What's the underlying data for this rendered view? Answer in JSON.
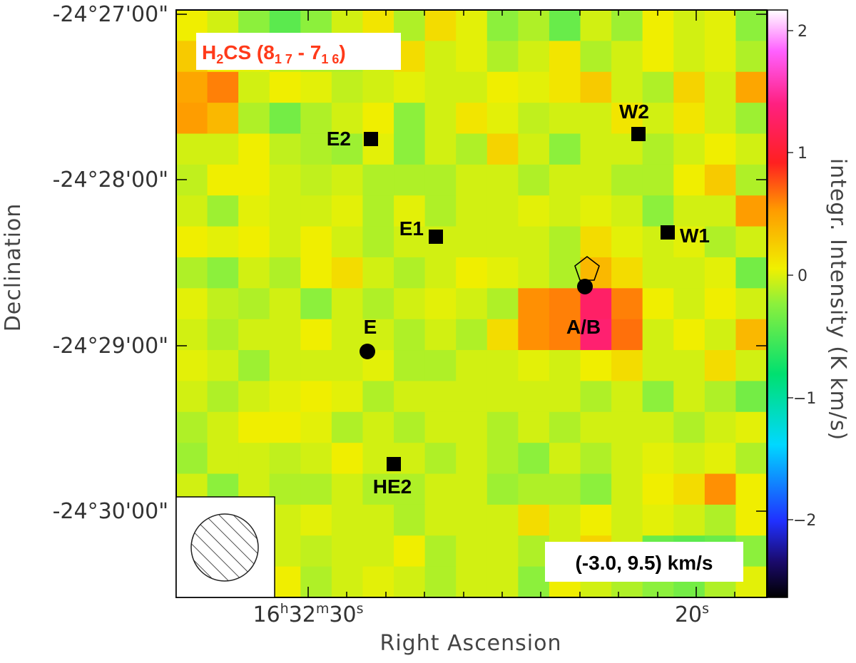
{
  "chart_data": {
    "type": "heatmap",
    "title": "H2CS (8_1 7 - 7_1 6)",
    "title_parts": {
      "base": "H",
      "sub1": "2",
      "mid": "CS (8",
      "sub2": "1 7",
      "dash": " - 7",
      "sub3": "1 6",
      "end": ")"
    },
    "velocity_range_label": "(-3.0, 9.5) km/s",
    "xlabel": "Right Ascension",
    "ylabel": "Declination",
    "x_ticks": [
      {
        "h": "16",
        "m": "32",
        "s": "30"
      },
      {
        "s": "20"
      }
    ],
    "y_ticks": [
      "-24°27'00\"",
      "-24°28'00\"",
      "-24°29'00\"",
      "-24°30'00\""
    ],
    "colorbar": {
      "label": "integr. Intensity (K km/s)",
      "ticks": [
        "2",
        "1",
        "0",
        "−1",
        "−2"
      ],
      "range": [
        -2.6,
        2.2
      ]
    },
    "grid": {
      "n_cols": 19,
      "n_rows": 19,
      "values": [
        [
          0.1,
          0.0,
          -0.2,
          -0.4,
          -0.2,
          0.0,
          0.15,
          -0.1,
          0.2,
          0.05,
          -0.2,
          -0.1,
          -0.35,
          0.0,
          -0.15,
          0.1,
          0.0,
          0.05,
          -0.2
        ],
        [
          0.3,
          0.1,
          0.05,
          -0.05,
          -0.1,
          -0.1,
          0.0,
          0.2,
          0.0,
          0.05,
          -0.1,
          0.0,
          0.15,
          -0.1,
          0.0,
          0.1,
          0.0,
          0.05,
          -0.1
        ],
        [
          0.5,
          0.65,
          0.0,
          0.1,
          0.05,
          -0.05,
          0.0,
          0.05,
          0.0,
          0.0,
          0.1,
          0.05,
          0.15,
          0.3,
          0.0,
          -0.1,
          0.25,
          0.0,
          0.5
        ],
        [
          0.55,
          0.4,
          -0.1,
          -0.3,
          -0.1,
          0.0,
          0.1,
          -0.2,
          0.0,
          0.15,
          0.05,
          -0.05,
          0.0,
          0.0,
          0.15,
          0.0,
          0.15,
          0.0,
          -0.15
        ],
        [
          0.0,
          0.0,
          0.1,
          -0.05,
          -0.1,
          -0.15,
          0.05,
          -0.2,
          0.0,
          -0.1,
          0.25,
          0.0,
          -0.2,
          0.0,
          0.0,
          -0.1,
          0.0,
          0.1,
          0.0
        ],
        [
          -0.05,
          0.1,
          0.1,
          0.0,
          -0.05,
          0.0,
          -0.1,
          -0.1,
          -0.1,
          0.0,
          0.0,
          -0.1,
          0.0,
          0.0,
          -0.1,
          -0.1,
          0.1,
          0.3,
          -0.1
        ],
        [
          0.0,
          -0.15,
          0.05,
          0.0,
          0.0,
          0.05,
          -0.1,
          0.05,
          -0.1,
          0.0,
          0.0,
          0.05,
          0.0,
          0.05,
          0.0,
          -0.2,
          0.0,
          0.0,
          0.55
        ],
        [
          0.1,
          0.05,
          0.1,
          0.0,
          0.1,
          0.0,
          -0.1,
          0.0,
          0.0,
          0.0,
          0.0,
          0.0,
          -0.1,
          0.2,
          0.05,
          0.0,
          0.05,
          -0.1,
          0.0
        ],
        [
          -0.1,
          -0.2,
          0.0,
          -0.1,
          0.1,
          0.2,
          0.0,
          -0.1,
          0.0,
          0.1,
          0.05,
          0.0,
          -0.1,
          0.4,
          0.2,
          0.0,
          0.0,
          0.05,
          -0.3
        ],
        [
          0.05,
          -0.05,
          -0.1,
          0.0,
          -0.2,
          0.0,
          -0.1,
          0.0,
          0.05,
          0.0,
          -0.1,
          0.6,
          0.65,
          1.3,
          0.65,
          0.1,
          0.0,
          0.1,
          0.0
        ],
        [
          0.0,
          -0.1,
          0.0,
          0.0,
          0.1,
          0.0,
          0.0,
          -0.1,
          0.0,
          -0.1,
          0.2,
          0.6,
          0.65,
          1.35,
          0.7,
          0.0,
          0.1,
          0.0,
          0.4
        ],
        [
          0.05,
          0.0,
          -0.15,
          0.0,
          0.0,
          0.0,
          0.05,
          -0.1,
          -0.1,
          0.0,
          0.0,
          0.05,
          0.0,
          0.1,
          0.2,
          0.0,
          0.0,
          0.2,
          0.0
        ],
        [
          0.0,
          -0.1,
          0.0,
          0.05,
          0.1,
          0.05,
          -0.1,
          0.0,
          0.0,
          0.0,
          0.0,
          0.0,
          0.0,
          -0.1,
          0.0,
          -0.2,
          0.0,
          -0.1,
          -0.3
        ],
        [
          -0.1,
          0.0,
          0.1,
          0.1,
          0.05,
          -0.1,
          0.0,
          -0.1,
          0.0,
          0.0,
          -0.1,
          0.0,
          -0.1,
          0.0,
          0.0,
          0.0,
          -0.1,
          0.0,
          0.05
        ],
        [
          -0.15,
          0.0,
          0.0,
          -0.05,
          0.0,
          0.1,
          0.0,
          0.0,
          -0.1,
          0.0,
          -0.1,
          -0.2,
          0.0,
          -0.1,
          0.0,
          0.05,
          0.0,
          0.05,
          -0.1
        ],
        [
          0.0,
          -0.2,
          0.0,
          -0.1,
          -0.1,
          0.0,
          -0.1,
          -0.1,
          0.0,
          0.0,
          -0.15,
          -0.1,
          -0.1,
          -0.2,
          0.0,
          0.1,
          0.2,
          0.6,
          0.1
        ],
        [
          0.15,
          0.15,
          -0.1,
          0.0,
          0.05,
          0.0,
          0.0,
          -0.1,
          0.0,
          0.0,
          0.0,
          0.2,
          0.0,
          0.1,
          0.0,
          0.05,
          0.0,
          -0.1,
          0.1
        ],
        [
          -0.15,
          -0.1,
          0.0,
          0.0,
          -0.05,
          0.0,
          0.0,
          0.1,
          -0.1,
          0.0,
          0.0,
          -0.1,
          0.0,
          0.25,
          0.0,
          -0.35,
          -0.4,
          -0.35,
          -0.2
        ],
        [
          0.0,
          0.0,
          0.0,
          0.1,
          -0.1,
          0.0,
          0.05,
          0.0,
          -0.1,
          0.0,
          0.0,
          -0.2,
          0.1,
          0.0,
          -0.1,
          -0.2,
          -0.3,
          -0.1,
          0.05
        ]
      ]
    },
    "sources": [
      {
        "name": "E2",
        "shape": "square"
      },
      {
        "name": "W2",
        "shape": "square"
      },
      {
        "name": "E1",
        "shape": "square"
      },
      {
        "name": "W1",
        "shape": "square"
      },
      {
        "name": "A/B",
        "shape": "circle"
      },
      {
        "name": "E",
        "shape": "circle"
      },
      {
        "name": "HE2",
        "shape": "square"
      }
    ],
    "beam_shown": true
  }
}
